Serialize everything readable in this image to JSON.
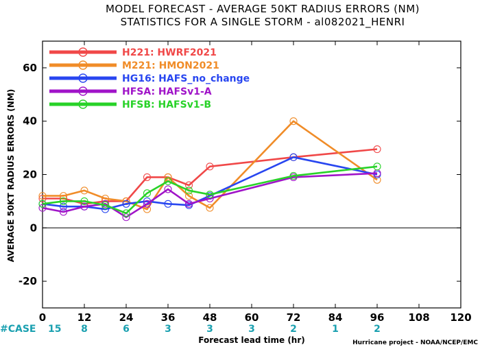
{
  "chart_data": {
    "type": "line",
    "title": "MODEL FORECAST - AVERAGE 50KT RADIUS ERRORS (NM)",
    "subtitle": "STATISTICS FOR A SINGLE STORM - al082021_HENRI",
    "xlabel": "Forecast lead time (hr)",
    "ylabel": "AVERAGE 50KT RADIUS ERRORS (NM)",
    "xlim": [
      0,
      120
    ],
    "ylim": [
      -30,
      70
    ],
    "x_ticks": [
      0,
      12,
      24,
      36,
      48,
      60,
      72,
      84,
      96,
      108,
      120
    ],
    "y_ticks": [
      -20,
      0,
      20,
      40,
      60
    ],
    "zero_line": true,
    "legend_position": "top-left",
    "case_label": "#CASE",
    "cases": [
      {
        "x": 0,
        "n": "15"
      },
      {
        "x": 12,
        "n": "8"
      },
      {
        "x": 24,
        "n": "6"
      },
      {
        "x": 36,
        "n": "3"
      },
      {
        "x": 48,
        "n": "3"
      },
      {
        "x": 60,
        "n": "3"
      },
      {
        "x": 72,
        "n": "2"
      },
      {
        "x": 84,
        "n": "1"
      },
      {
        "x": 96,
        "n": "2"
      }
    ],
    "credit": "Hurricane project - NOAA/NCEP/EMC",
    "series": [
      {
        "name": "H221: HWRF2021",
        "color": "#f04848",
        "points": [
          [
            0,
            11
          ],
          [
            6,
            11
          ],
          [
            12,
            9
          ],
          [
            18,
            10
          ],
          [
            24,
            10
          ],
          [
            30,
            19
          ],
          [
            36,
            19
          ],
          [
            42,
            16
          ],
          [
            48,
            23
          ],
          [
            72,
            26.5
          ],
          [
            96,
            29.5
          ]
        ]
      },
      {
        "name": "M221: HMON2021",
        "color": "#f08c28",
        "points": [
          [
            0,
            12
          ],
          [
            6,
            12
          ],
          [
            12,
            14
          ],
          [
            18,
            11
          ],
          [
            24,
            10
          ],
          [
            30,
            7
          ],
          [
            36,
            19
          ],
          [
            42,
            12
          ],
          [
            48,
            7.5
          ],
          [
            72,
            40
          ],
          [
            96,
            18
          ]
        ]
      },
      {
        "name": "HG16: HAFS_no_change",
        "color": "#2846f0",
        "points": [
          [
            0,
            9
          ],
          [
            6,
            8
          ],
          [
            12,
            8
          ],
          [
            18,
            7
          ],
          [
            24,
            9
          ],
          [
            30,
            10
          ],
          [
            36,
            9
          ],
          [
            42,
            8.5
          ],
          [
            48,
            12
          ],
          [
            72,
            26.5
          ],
          [
            96,
            20
          ]
        ]
      },
      {
        "name": "HFSA: HAFSv1-A",
        "color": "#a014c8",
        "points": [
          [
            0,
            7.5
          ],
          [
            6,
            6
          ],
          [
            12,
            8
          ],
          [
            18,
            9
          ],
          [
            24,
            4
          ],
          [
            30,
            9
          ],
          [
            36,
            14.5
          ],
          [
            42,
            9
          ],
          [
            48,
            11
          ],
          [
            72,
            19
          ],
          [
            96,
            20.5
          ]
        ]
      },
      {
        "name": "HFSB: HAFSv1-B",
        "color": "#28d228",
        "points": [
          [
            0,
            9
          ],
          [
            6,
            10
          ],
          [
            12,
            10
          ],
          [
            18,
            8.5
          ],
          [
            24,
            5.5
          ],
          [
            30,
            13
          ],
          [
            36,
            17.5
          ],
          [
            42,
            14
          ],
          [
            48,
            12.5
          ],
          [
            72,
            19.5
          ],
          [
            96,
            23
          ]
        ]
      }
    ]
  }
}
